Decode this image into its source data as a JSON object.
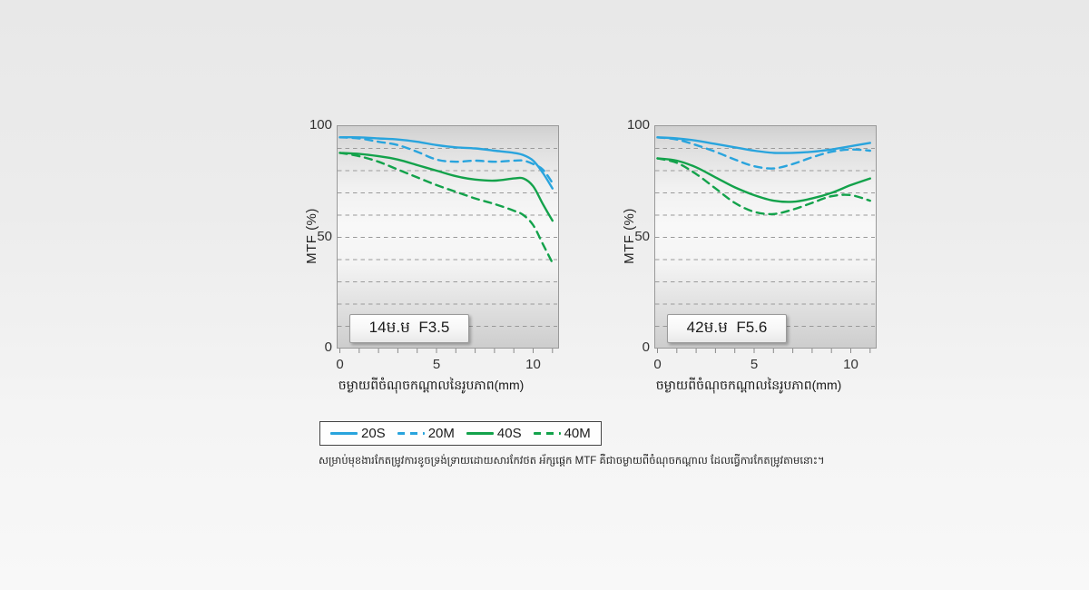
{
  "caption": "សម្រាប់មុខងារកែតម្រូវការខូចទ្រង់ទ្រាយដោយសារកែវថត អ័ក្សផ្ដេក MTF គឺជាចម្ងាយពីចំណុចកណ្ដាល ដែលធ្វើការកែតម្រូវតាមនោះ។",
  "colors": {
    "blue": "#29a4dd",
    "green": "#13a24b",
    "grid": "#9a9a9a",
    "axis_border": "#999999"
  },
  "legend": {
    "items": [
      {
        "label": "20S",
        "color": "#29a4dd",
        "style": "solid"
      },
      {
        "label": "20M",
        "color": "#29a4dd",
        "style": "dashed"
      },
      {
        "label": "40S",
        "color": "#13a24b",
        "style": "solid"
      },
      {
        "label": "40M",
        "color": "#13a24b",
        "style": "dashed"
      }
    ]
  },
  "chart_data": [
    {
      "type": "line",
      "title": "14ម.ម  F3.5",
      "xlabel": "ចម្ងាយពីចំណុចកណ្ដាលនៃរូបភាព(mm)",
      "ylabel": "MTF (%)",
      "xlim": [
        0,
        11.3
      ],
      "ylim": [
        0,
        100
      ],
      "x_ticks": [
        0,
        5,
        10
      ],
      "minor_x_ticks": [
        0,
        1,
        2,
        3,
        4,
        5,
        6,
        7,
        8,
        9,
        10,
        11
      ],
      "y_ticks": [
        100,
        50,
        0
      ],
      "gridlines_y": [
        10,
        20,
        30,
        40,
        50,
        60,
        70,
        80,
        90
      ],
      "series": [
        {
          "name": "20S",
          "color": "#29a4dd",
          "style": "solid",
          "x": [
            0,
            1,
            2,
            3,
            4,
            5,
            6,
            7,
            8,
            9,
            9.5,
            10,
            10.5,
            11
          ],
          "y": [
            95,
            95,
            94.5,
            94,
            93,
            91.5,
            90.5,
            90,
            89,
            88,
            87,
            84.5,
            79,
            72
          ]
        },
        {
          "name": "20M",
          "color": "#29a4dd",
          "style": "dashed",
          "x": [
            0,
            1,
            2,
            3,
            4,
            5,
            6,
            7,
            8,
            9,
            9.5,
            10,
            10.5,
            11
          ],
          "y": [
            95,
            94.5,
            93,
            91.5,
            88.5,
            85,
            84,
            84.5,
            84,
            84.5,
            84.5,
            83,
            80.5,
            74.5
          ]
        },
        {
          "name": "40S",
          "color": "#13a24b",
          "style": "solid",
          "x": [
            0,
            1,
            2,
            3,
            4,
            5,
            6,
            7,
            8,
            9,
            9.5,
            10,
            10.5,
            11
          ],
          "y": [
            88,
            87.5,
            86.5,
            85,
            82.5,
            80,
            77.5,
            76,
            75.5,
            76.5,
            76.5,
            73,
            65,
            57.5
          ]
        },
        {
          "name": "40M",
          "color": "#13a24b",
          "style": "dashed",
          "x": [
            0,
            1,
            2,
            3,
            4,
            5,
            6,
            7,
            8,
            9,
            9.5,
            10,
            10.5,
            11
          ],
          "y": [
            88,
            86.5,
            84,
            80.5,
            77,
            73.5,
            70.5,
            67.5,
            65,
            62,
            60,
            55.5,
            47,
            38.5
          ]
        }
      ]
    },
    {
      "type": "line",
      "title": "42ម.ម  F5.6",
      "xlabel": "ចម្ងាយពីចំណុចកណ្ដាលនៃរូបភាព(mm)",
      "ylabel": "MTF (%)",
      "xlim": [
        0,
        11.3
      ],
      "ylim": [
        0,
        100
      ],
      "x_ticks": [
        0,
        5,
        10
      ],
      "minor_x_ticks": [
        0,
        1,
        2,
        3,
        4,
        5,
        6,
        7,
        8,
        9,
        10,
        11
      ],
      "y_ticks": [
        100,
        50,
        0
      ],
      "gridlines_y": [
        10,
        20,
        30,
        40,
        50,
        60,
        70,
        80,
        90
      ],
      "series": [
        {
          "name": "20S",
          "color": "#29a4dd",
          "style": "solid",
          "x": [
            0,
            1,
            2,
            3,
            4,
            5,
            6,
            7,
            8,
            9,
            10,
            11
          ],
          "y": [
            95,
            94.5,
            93.5,
            92,
            90.5,
            89,
            88,
            88,
            88.5,
            89.5,
            91,
            92.5
          ]
        },
        {
          "name": "20M",
          "color": "#29a4dd",
          "style": "dashed",
          "x": [
            0,
            1,
            2,
            3,
            4,
            5,
            6,
            7,
            8,
            9,
            10,
            11
          ],
          "y": [
            95,
            94,
            91.5,
            88.5,
            85,
            82,
            81,
            83,
            86,
            88.5,
            89.5,
            89
          ]
        },
        {
          "name": "40S",
          "color": "#13a24b",
          "style": "solid",
          "x": [
            0,
            1,
            2,
            3,
            4,
            5,
            6,
            7,
            8,
            9,
            10,
            11
          ],
          "y": [
            85.5,
            84.5,
            81.5,
            77,
            72.5,
            69,
            66.5,
            66,
            67.5,
            70,
            73.5,
            76.5
          ]
        },
        {
          "name": "40M",
          "color": "#13a24b",
          "style": "dashed",
          "x": [
            0,
            1,
            2,
            3,
            4,
            5,
            6,
            7,
            8,
            9,
            10,
            11
          ],
          "y": [
            85.5,
            83.5,
            78.5,
            72,
            65.5,
            61.5,
            60.5,
            62.5,
            65.5,
            68.5,
            69,
            66.5
          ]
        }
      ]
    }
  ]
}
